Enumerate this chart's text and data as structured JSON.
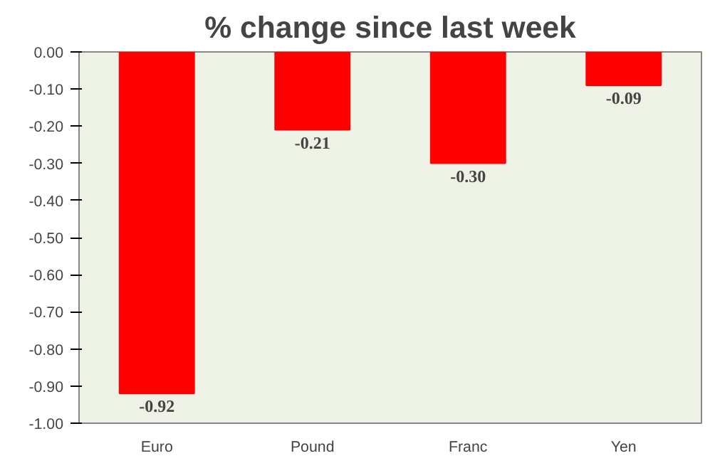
{
  "chart_data": {
    "type": "bar",
    "title": "% change since last week",
    "categories": [
      "Euro",
      "Pound",
      "Franc",
      "Yen"
    ],
    "values": [
      -0.92,
      -0.21,
      -0.3,
      -0.09
    ],
    "value_labels": [
      "-0.92",
      "-0.21",
      "-0.30",
      "-0.09"
    ],
    "color": "#ff0000",
    "ylim": [
      -1,
      0
    ],
    "yticks": [
      {
        "value": 0,
        "label": "0.00"
      },
      {
        "value": -0.1,
        "label": "-0.10"
      },
      {
        "value": -0.2,
        "label": "-0.20"
      },
      {
        "value": -0.3,
        "label": "-0.30"
      },
      {
        "value": -0.4,
        "label": "-0.40"
      },
      {
        "value": -0.5,
        "label": "-0.50"
      },
      {
        "value": -0.6,
        "label": "-0.60"
      },
      {
        "value": -0.7,
        "label": "-0.70"
      },
      {
        "value": -0.8,
        "label": "-0.80"
      },
      {
        "value": -0.9,
        "label": "-0.90"
      },
      {
        "value": -1,
        "label": "-1.00"
      }
    ],
    "grid": false
  }
}
